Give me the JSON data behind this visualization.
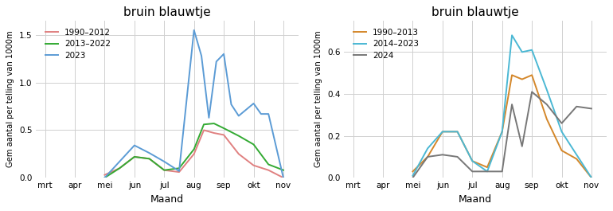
{
  "title1": "bruin blauwtje",
  "title2": "bruin blauwtje",
  "ylabel": "Gem aantal per telling van 1000m",
  "xlabel": "Maand",
  "months": [
    "mrt",
    "apr",
    "mei",
    "jun",
    "jul",
    "aug",
    "sep",
    "okt",
    "nov"
  ],
  "left": {
    "legend_labels": [
      "1990–2012",
      "2013–2022",
      "2023"
    ],
    "colors": [
      "#e08080",
      "#33aa33",
      "#5b9bd5"
    ],
    "ylim": [
      0,
      1.65
    ],
    "yticks": [
      0.0,
      0.5,
      1.0,
      1.5
    ],
    "x_1990": [
      2.0,
      2.5,
      3.0,
      3.5,
      4.0,
      4.5,
      5.0,
      5.33,
      5.67,
      6.0,
      6.5,
      7.0,
      7.5,
      8.0
    ],
    "y_1990": [
      0.03,
      0.1,
      0.22,
      0.2,
      0.08,
      0.06,
      0.25,
      0.5,
      0.47,
      0.45,
      0.25,
      0.13,
      0.08,
      0.0
    ],
    "x_2013": [
      2.0,
      2.5,
      3.0,
      3.5,
      4.0,
      4.5,
      5.0,
      5.33,
      5.67,
      6.0,
      6.5,
      7.0,
      7.5,
      8.0
    ],
    "y_2013": [
      0.0,
      0.1,
      0.22,
      0.2,
      0.08,
      0.1,
      0.3,
      0.56,
      0.57,
      0.52,
      0.44,
      0.35,
      0.14,
      0.08
    ],
    "x_2023": [
      2.0,
      3.0,
      3.5,
      4.0,
      4.5,
      5.0,
      5.25,
      5.5,
      5.75,
      6.0,
      6.25,
      6.5,
      7.0,
      7.25,
      7.5,
      8.0
    ],
    "y_2023": [
      0.0,
      0.34,
      0.26,
      0.17,
      0.07,
      1.55,
      1.28,
      0.63,
      1.22,
      1.3,
      0.77,
      0.65,
      0.78,
      0.67,
      0.67,
      0.0
    ]
  },
  "right": {
    "legend_labels": [
      "1990–2013",
      "2014–2023",
      "2024"
    ],
    "colors": [
      "#d4872a",
      "#4bb8d4",
      "#777777"
    ],
    "ylim": [
      0,
      0.75
    ],
    "yticks": [
      0.0,
      0.2,
      0.4,
      0.6
    ],
    "x_1990": [
      2.0,
      2.5,
      3.0,
      3.5,
      4.0,
      4.5,
      5.0,
      5.33,
      5.67,
      6.0,
      6.5,
      7.0,
      7.5,
      8.0
    ],
    "y_1990": [
      0.03,
      0.1,
      0.22,
      0.22,
      0.08,
      0.05,
      0.22,
      0.49,
      0.47,
      0.49,
      0.28,
      0.13,
      0.09,
      0.0
    ],
    "x_2014": [
      2.0,
      2.5,
      3.0,
      3.5,
      4.0,
      4.5,
      5.0,
      5.33,
      5.67,
      6.0,
      6.5,
      7.0,
      7.5,
      8.0
    ],
    "y_2014": [
      0.01,
      0.14,
      0.22,
      0.22,
      0.08,
      0.03,
      0.22,
      0.68,
      0.6,
      0.61,
      0.42,
      0.22,
      0.11,
      0.0
    ],
    "x_2024": [
      2.0,
      2.5,
      3.0,
      3.5,
      4.0,
      4.5,
      5.0,
      5.33,
      5.67,
      6.0,
      6.5,
      7.0,
      7.5,
      8.0
    ],
    "y_2024": [
      0.0,
      0.1,
      0.11,
      0.1,
      0.03,
      0.03,
      0.03,
      0.35,
      0.15,
      0.41,
      0.35,
      0.26,
      0.34,
      0.33
    ]
  },
  "background_color": "#ffffff",
  "grid_color": "#d0d0d0",
  "panel_bg": "#ffffff"
}
